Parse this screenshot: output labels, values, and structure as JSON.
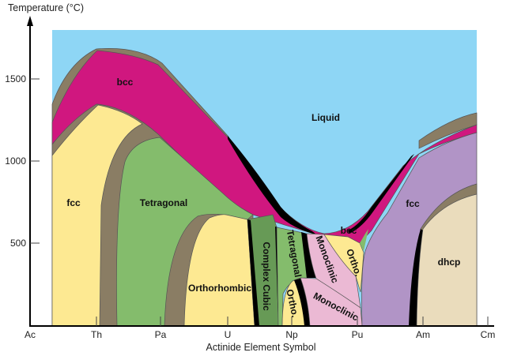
{
  "diagram": {
    "y_axis_label": "Temperature (°C)",
    "x_axis_label": "Actinide Element Symbol",
    "y_ticks": [
      "1500",
      "1000",
      "500"
    ],
    "x_ticks": [
      "Ac",
      "Th",
      "Pa",
      "U",
      "Np",
      "Pu",
      "Am",
      "Cm"
    ],
    "phases": {
      "liquid": "Liquid",
      "bcc_left": "bcc",
      "bcc_pu": "bcc",
      "fcc_left": "fcc",
      "fcc_right": "fcc",
      "tetragonal_pa": "Tetragonal",
      "orthorhombic_u": "Orthorhombic",
      "complex_cubic": "Complex Cubic",
      "tetragonal_np": "Tetragonal",
      "ortho_np": "Ortho.",
      "monoclinic_upper": "Monoclinic",
      "monoclinic_lower": "Monoclinic",
      "ortho_pu": "Ortho.",
      "dhcp": "dhcp"
    },
    "colors": {
      "liquid": "#8ed6f5",
      "bcc": "#d0177f",
      "fcc_left": "#fde992",
      "two_phase": "#8a7d64",
      "tetragonal": "#84bc6c",
      "complex_cubic": "#679a56",
      "monoclinic": "#ebb9d4",
      "fcc_right": "#b194c6",
      "dhcp": "#eadcbc"
    }
  }
}
